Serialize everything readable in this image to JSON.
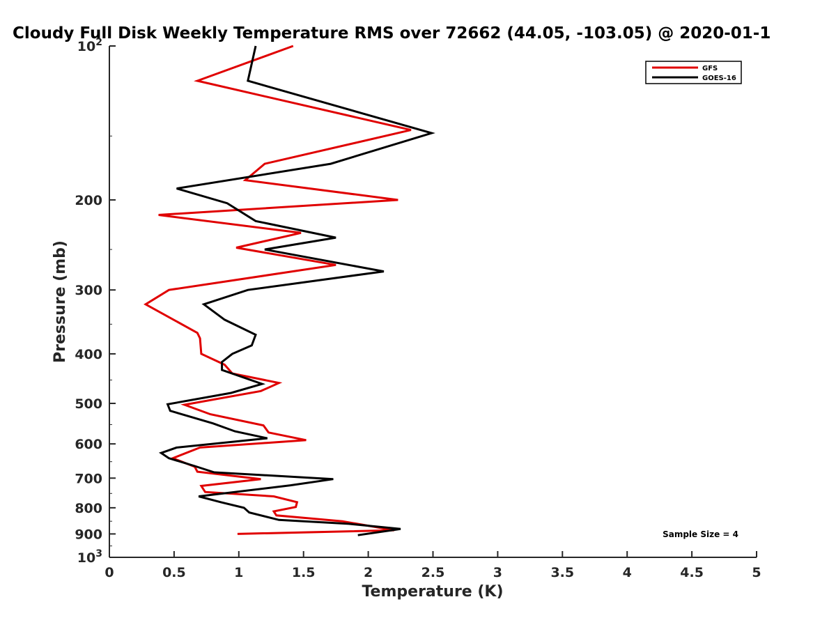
{
  "chart_data": {
    "type": "line",
    "title": "Cloudy Full Disk Weekly Temperature RMS over 72662 (44.05, -103.05) @ 2020-01-1",
    "xlabel": "Temperature (K)",
    "ylabel": "Pressure (mb)",
    "xlim": [
      0,
      5
    ],
    "ylim": [
      100,
      1000
    ],
    "y_scale": "log",
    "y_reversed": true,
    "x_ticks": [
      "0",
      "0.5",
      "1",
      "1.5",
      "2",
      "2.5",
      "3",
      "3.5",
      "4",
      "4.5",
      "5"
    ],
    "x_tick_values": [
      0,
      0.5,
      1,
      1.5,
      2,
      2.5,
      3,
      3.5,
      4,
      4.5,
      5
    ],
    "y_ticks": [
      {
        "value": 100,
        "label": "10",
        "sup": "2"
      },
      {
        "value": 200,
        "label": "200"
      },
      {
        "value": 300,
        "label": "300"
      },
      {
        "value": 400,
        "label": "400"
      },
      {
        "value": 500,
        "label": "500"
      },
      {
        "value": 600,
        "label": "600"
      },
      {
        "value": 700,
        "label": "700"
      },
      {
        "value": 800,
        "label": "800"
      },
      {
        "value": 900,
        "label": "900"
      },
      {
        "value": 1000,
        "label": "10",
        "sup": "3"
      }
    ],
    "grid": false,
    "legend_position": "top-right",
    "annotation": "Sample Size = 4",
    "series": [
      {
        "name": "GFS",
        "color": "#e00000",
        "points": [
          [
            1.42,
            100
          ],
          [
            0.68,
            117
          ],
          [
            2.33,
            146
          ],
          [
            1.2,
            170
          ],
          [
            1.05,
            183
          ],
          [
            2.23,
            200
          ],
          [
            0.38,
            214
          ],
          [
            1.48,
            232
          ],
          [
            0.98,
            248
          ],
          [
            1.75,
            268
          ],
          [
            0.46,
            300
          ],
          [
            0.28,
            320
          ],
          [
            0.68,
            364
          ],
          [
            0.7,
            373
          ],
          [
            0.71,
            400
          ],
          [
            0.89,
            420
          ],
          [
            0.95,
            437
          ],
          [
            1.31,
            456
          ],
          [
            1.17,
            473
          ],
          [
            0.58,
            503
          ],
          [
            0.78,
            525
          ],
          [
            1.19,
            552
          ],
          [
            1.23,
            570
          ],
          [
            1.52,
            590
          ],
          [
            0.7,
            610
          ],
          [
            0.49,
            640
          ],
          [
            0.66,
            665
          ],
          [
            0.68,
            680
          ],
          [
            1.17,
            703
          ],
          [
            0.71,
            725
          ],
          [
            0.74,
            745
          ],
          [
            1.27,
            760
          ],
          [
            1.45,
            780
          ],
          [
            1.44,
            797
          ],
          [
            1.27,
            813
          ],
          [
            1.29,
            828
          ],
          [
            1.8,
            850
          ],
          [
            2.2,
            885
          ],
          [
            0.99,
            900
          ]
        ]
      },
      {
        "name": "GOES-16",
        "color": "#000000",
        "points": [
          [
            1.13,
            100
          ],
          [
            1.07,
            117
          ],
          [
            2.49,
            148
          ],
          [
            1.71,
            170
          ],
          [
            0.52,
            190
          ],
          [
            0.91,
            203
          ],
          [
            1.13,
            220
          ],
          [
            1.75,
            237
          ],
          [
            1.2,
            250
          ],
          [
            2.12,
            276
          ],
          [
            1.07,
            300
          ],
          [
            0.73,
            320
          ],
          [
            0.89,
            343
          ],
          [
            1.13,
            367
          ],
          [
            1.1,
            385
          ],
          [
            0.95,
            400
          ],
          [
            0.87,
            415
          ],
          [
            0.87,
            430
          ],
          [
            1.18,
            458
          ],
          [
            0.94,
            477
          ],
          [
            0.45,
            502
          ],
          [
            0.47,
            517
          ],
          [
            0.8,
            547
          ],
          [
            0.97,
            567
          ],
          [
            1.22,
            585
          ],
          [
            0.52,
            610
          ],
          [
            0.4,
            625
          ],
          [
            0.46,
            640
          ],
          [
            0.66,
            663
          ],
          [
            0.81,
            682
          ],
          [
            1.73,
            703
          ],
          [
            1.4,
            723
          ],
          [
            0.69,
            760
          ],
          [
            0.86,
            780
          ],
          [
            1.04,
            800
          ],
          [
            1.08,
            817
          ],
          [
            1.31,
            845
          ],
          [
            1.85,
            860
          ],
          [
            2.25,
            880
          ],
          [
            1.92,
            905
          ]
        ]
      }
    ]
  }
}
